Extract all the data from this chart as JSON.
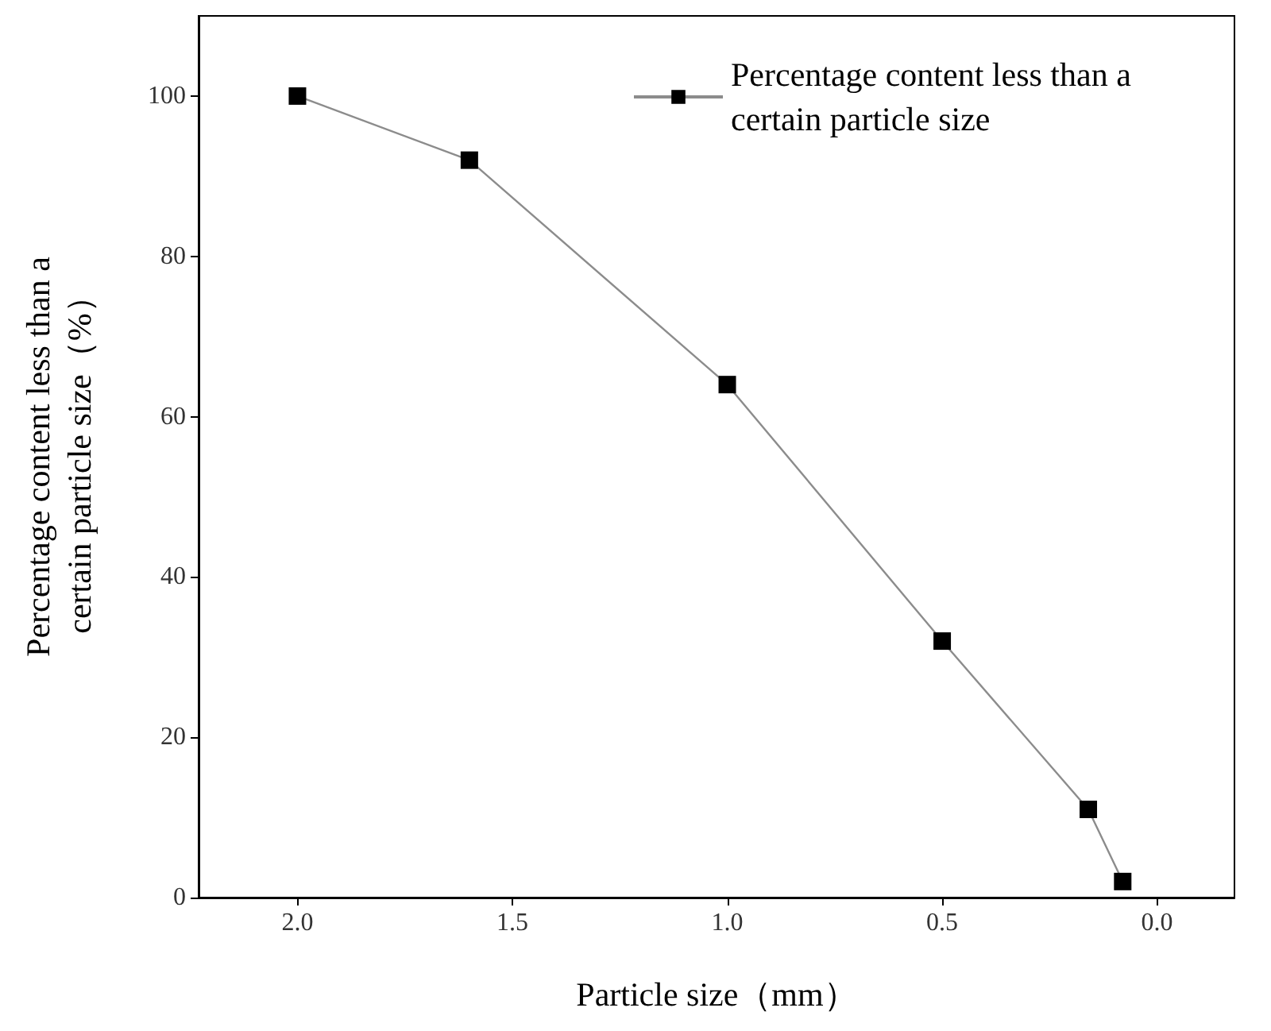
{
  "chart_data": {
    "type": "line",
    "xlabel": "Particle size（mm）",
    "ylabel": "Percentage content less than a certain particle size（%）",
    "x": [
      2.0,
      1.6,
      1.0,
      0.5,
      0.16,
      0.08
    ],
    "series": [
      {
        "name": "Percentage content less than a certain particle size",
        "color": "#000000",
        "values": [
          100,
          92,
          64,
          32,
          11,
          2
        ]
      }
    ],
    "xlim": [
      2.23,
      -0.18
    ],
    "xticks": [
      {
        "value": 2,
        "label": "2.0"
      },
      {
        "value": 1.5,
        "label": "1.5"
      },
      {
        "value": 1,
        "label": "1.0"
      },
      {
        "value": 0.5,
        "label": "0.5"
      },
      {
        "value": 0,
        "label": "0.0"
      }
    ],
    "ylim": [
      0,
      110
    ],
    "yticks": [
      0,
      20,
      40,
      60,
      80,
      100
    ],
    "grid": false,
    "legend": "top right",
    "marker": "square",
    "line_style": "solid"
  }
}
